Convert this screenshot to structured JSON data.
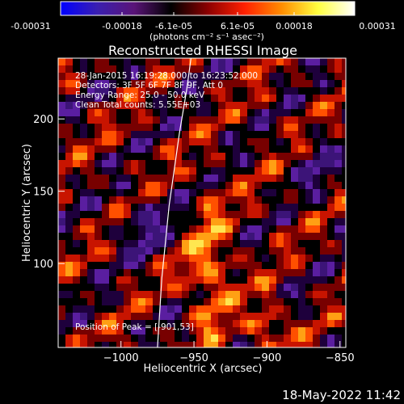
{
  "colorbar": {
    "tick_labels": [
      "-0.00031",
      "-0.00018",
      "-6.1e-05",
      "6.1e-05",
      "0.00018",
      "0.00031"
    ],
    "unit_label": "(photons cm⁻² s⁻¹ asec⁻²)",
    "range": [
      -0.00031,
      0.00031
    ],
    "colors": [
      "#0000ff",
      "#3a1fb0",
      "#5a1478",
      "#000000",
      "#8b0000",
      "#ff2000",
      "#ff8c00",
      "#ffff40",
      "#ffffff"
    ]
  },
  "chart_data": {
    "type": "heatmap",
    "title": "Reconstructed RHESSI Image",
    "xlabel": "Heliocentric X (arcsec)",
    "ylabel": "Heliocentric Y (arcsec)",
    "xlim": [
      -1043,
      -846
    ],
    "ylim": [
      42,
      242
    ],
    "x_ticks": [
      -1000,
      -950,
      -900,
      -850
    ],
    "x_tick_labels": [
      "−1000",
      "−950",
      "−900",
      "−850"
    ],
    "y_ticks": [
      100,
      150,
      200
    ],
    "y_tick_labels": [
      "100",
      "150",
      "200"
    ],
    "annotations": [
      "28-Jan-2015 16:19:28.000 to 16:23:52.000",
      "Detectors: 3F 5F 6F 7F 8F 9F, Att 0",
      "Energy Range: 25.0 - 50.0 keV",
      "Clean    Total counts: 5.55E+03"
    ],
    "peak_label": "Position of Peak = [-901,53]",
    "peak": [
      -901,
      53
    ],
    "limb_curve": [
      [
        -975,
        42
      ],
      [
        -972,
        90
      ],
      [
        -967,
        140
      ],
      [
        -960,
        190
      ],
      [
        -955,
        220
      ],
      [
        -952,
        242
      ]
    ]
  },
  "timestamp": "18-May-2022 11:42"
}
